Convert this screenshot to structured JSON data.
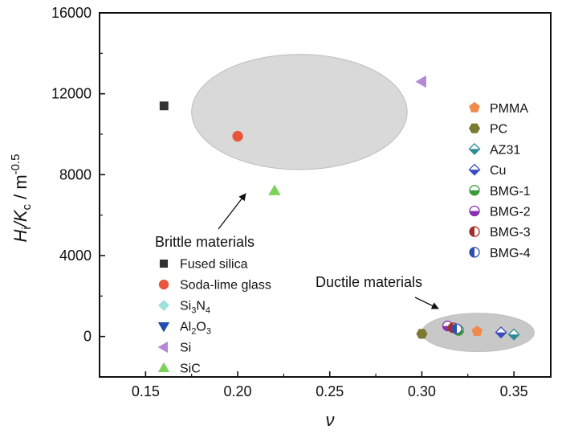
{
  "chart_data": {
    "type": "scatter",
    "title": "",
    "xlabel": "ν",
    "ylabel": {
      "main": "H",
      "sub1": "i",
      "slash": "/K",
      "sub2": "c",
      "unit": " / m",
      "sup": "-0.5"
    },
    "xlim": [
      0.125,
      0.37
    ],
    "ylim": [
      -2000,
      16000
    ],
    "xticks": [
      "0.15",
      "0.20",
      "0.25",
      "0.30",
      "0.35"
    ],
    "xtick_values": [
      0.15,
      0.2,
      0.25,
      0.3,
      0.35
    ],
    "yticks": [
      "0",
      "4000",
      "8000",
      "12000",
      "16000"
    ],
    "ytick_values": [
      0,
      4000,
      8000,
      12000,
      16000
    ],
    "grid": false,
    "regions": [
      {
        "label": "Brittle materials",
        "cx": 0.2335,
        "cy": 11100,
        "rx": 0.0585,
        "ry": 2850,
        "color": "#d9d9d9"
      },
      {
        "label": "Ductile materials",
        "cx": 0.3305,
        "cy": 200,
        "rx": 0.0305,
        "ry": 950,
        "color": "#c8c8c8"
      }
    ],
    "series": [
      {
        "name": "Fused silica",
        "marker": "square",
        "color": "#333333",
        "x": 0.16,
        "y": 11400
      },
      {
        "name": "Soda-lime glass",
        "marker": "circle",
        "color": "#e8553a",
        "x": 0.2,
        "y": 9900
      },
      {
        "name": "Si₃N₄",
        "marker": "diamond",
        "color": "#9ee0dc",
        "x": null,
        "y": null
      },
      {
        "name": "Al₂O₃",
        "marker": "triangle-down",
        "color": "#1f4fae",
        "x": null,
        "y": null
      },
      {
        "name": "Si",
        "marker": "triangle-left",
        "color": "#b388d6",
        "x": 0.3,
        "y": 12600
      },
      {
        "name": "SiC",
        "marker": "triangle-up",
        "color": "#7dd35a",
        "x": 0.22,
        "y": 7200
      },
      {
        "name": "PMMA",
        "marker": "pentagon",
        "color": "#f08a4b",
        "x": 0.33,
        "y": 250
      },
      {
        "name": "PC",
        "marker": "hexagon",
        "color": "#7a7a33",
        "x": 0.3,
        "y": 130
      },
      {
        "name": "AZ31",
        "marker": "diamond-half",
        "color": "#2e8b9a",
        "x": 0.35,
        "y": 100
      },
      {
        "name": "Cu",
        "marker": "diamond-half",
        "color": "#3b4cc0",
        "x": 0.343,
        "y": 200
      },
      {
        "name": "BMG-1",
        "marker": "circle-half-bottom",
        "color": "#3a9a3a",
        "x": 0.32,
        "y": 300
      },
      {
        "name": "BMG-2",
        "marker": "circle-half-bottom",
        "color": "#8a2fb0",
        "x": 0.314,
        "y": 520
      },
      {
        "name": "BMG-3",
        "marker": "circle-half-left",
        "color": "#a0302a",
        "x": 0.317,
        "y": 430
      },
      {
        "name": "BMG-4",
        "marker": "circle-half-left",
        "color": "#2f4fb0",
        "x": 0.319,
        "y": 380
      }
    ],
    "legend_left": {
      "title": "Brittle materials",
      "items": [
        {
          "marker": "square",
          "color": "#333333",
          "text": "Fused silica"
        },
        {
          "marker": "circle",
          "color": "#e8553a",
          "text": "Soda-lime glass"
        },
        {
          "marker": "diamond",
          "color": "#9ee0dc",
          "base": "Si",
          "sub1": "3",
          "mid": "N",
          "sub2": "4"
        },
        {
          "marker": "triangle-down",
          "color": "#1f4fae",
          "base": "Al",
          "sub1": "2",
          "mid": "O",
          "sub2": "3"
        },
        {
          "marker": "triangle-left",
          "color": "#b388d6",
          "text": "Si"
        },
        {
          "marker": "triangle-up",
          "color": "#7dd35a",
          "text": "SiC"
        }
      ]
    },
    "legend_right": {
      "items": [
        {
          "marker": "pentagon",
          "color": "#f08a4b",
          "text": "PMMA"
        },
        {
          "marker": "hexagon",
          "color": "#7a7a33",
          "text": "PC"
        },
        {
          "marker": "diamond-half",
          "color": "#2e8b9a",
          "text": "AZ31"
        },
        {
          "marker": "diamond-half",
          "color": "#3b4cc0",
          "text": "Cu"
        },
        {
          "marker": "circle-half-bottom",
          "color": "#3a9a3a",
          "text": "BMG-1"
        },
        {
          "marker": "circle-half-bottom",
          "color": "#8a2fb0",
          "text": "BMG-2"
        },
        {
          "marker": "circle-half-left",
          "color": "#a0302a",
          "text": "BMG-3"
        },
        {
          "marker": "circle-half-left",
          "color": "#2f4fb0",
          "text": "BMG-4"
        }
      ]
    },
    "annotations": {
      "ductile": "Ductile materials"
    }
  }
}
